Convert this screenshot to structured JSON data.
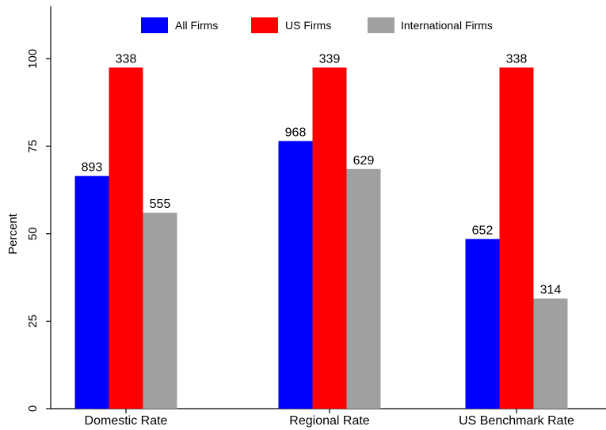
{
  "chart_data": {
    "type": "bar",
    "ylabel": "Percent",
    "ylim": [
      0,
      115
    ],
    "yticks": [
      0,
      25,
      50,
      75,
      100
    ],
    "categories": [
      "Domestic Rate",
      "Regional Rate",
      "US Benchmark Rate"
    ],
    "legend_placement": "top",
    "grid": false,
    "series": [
      {
        "name": "All Firms",
        "color": "#0000ff",
        "values": [
          66.5,
          76.5,
          48.5
        ],
        "labels": [
          "893",
          "968",
          "652"
        ]
      },
      {
        "name": "US Firms",
        "color": "#ff0000",
        "values": [
          97.5,
          97.5,
          97.5
        ],
        "labels": [
          "338",
          "339",
          "338"
        ]
      },
      {
        "name": "International Firms",
        "color": "#a0a0a0",
        "values": [
          56,
          68.5,
          31.5
        ],
        "labels": [
          "555",
          "629",
          "314"
        ]
      }
    ]
  }
}
